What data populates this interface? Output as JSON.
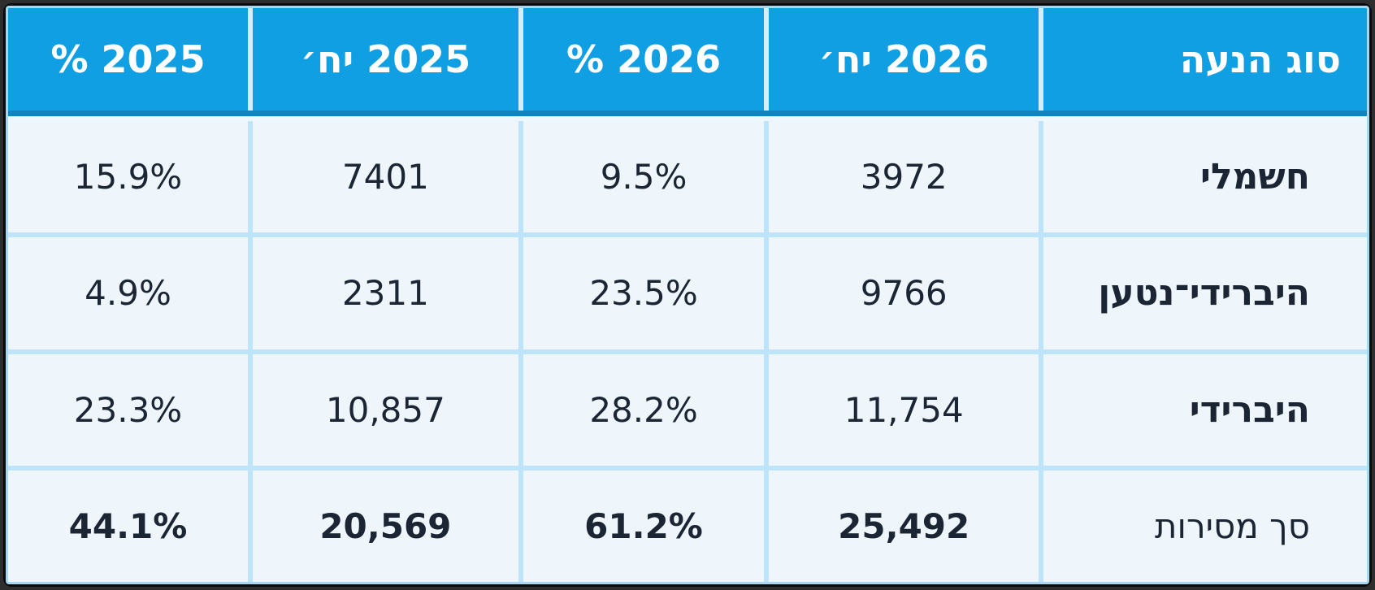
{
  "chart_data": {
    "type": "table",
    "direction": "rtl",
    "columns": [
      "סוג הנעה",
      "2026 יח׳",
      "2026 %",
      "2025 יח׳",
      "2025 %"
    ],
    "rows": [
      [
        "חשמלי",
        "3972",
        "9.5%",
        "7401",
        "15.9%"
      ],
      [
        "היברידי־נטען",
        "9766",
        "23.5%",
        "2311",
        "4.9%"
      ],
      [
        "היברידי",
        "11,754",
        "28.2%",
        "10,857",
        "23.3%"
      ],
      [
        "סך מסירות",
        "25,492",
        "61.2%",
        "20,569",
        "44.1%"
      ]
    ],
    "total_row_index": 3
  },
  "colors": {
    "frame_bg": "#2e2e2e",
    "frame_border": "#0a0a0a",
    "table_outline": "#a6d8f1",
    "header_bg": "#119fe4",
    "header_strip": "#0d86c6",
    "header_text": "#ffffff",
    "cell_bg": "#eef6fc",
    "divider": "#bde4f8",
    "header_divider": "#d6edfb",
    "under_header_divider": "#eef7fd",
    "text": "#1b2534"
  }
}
